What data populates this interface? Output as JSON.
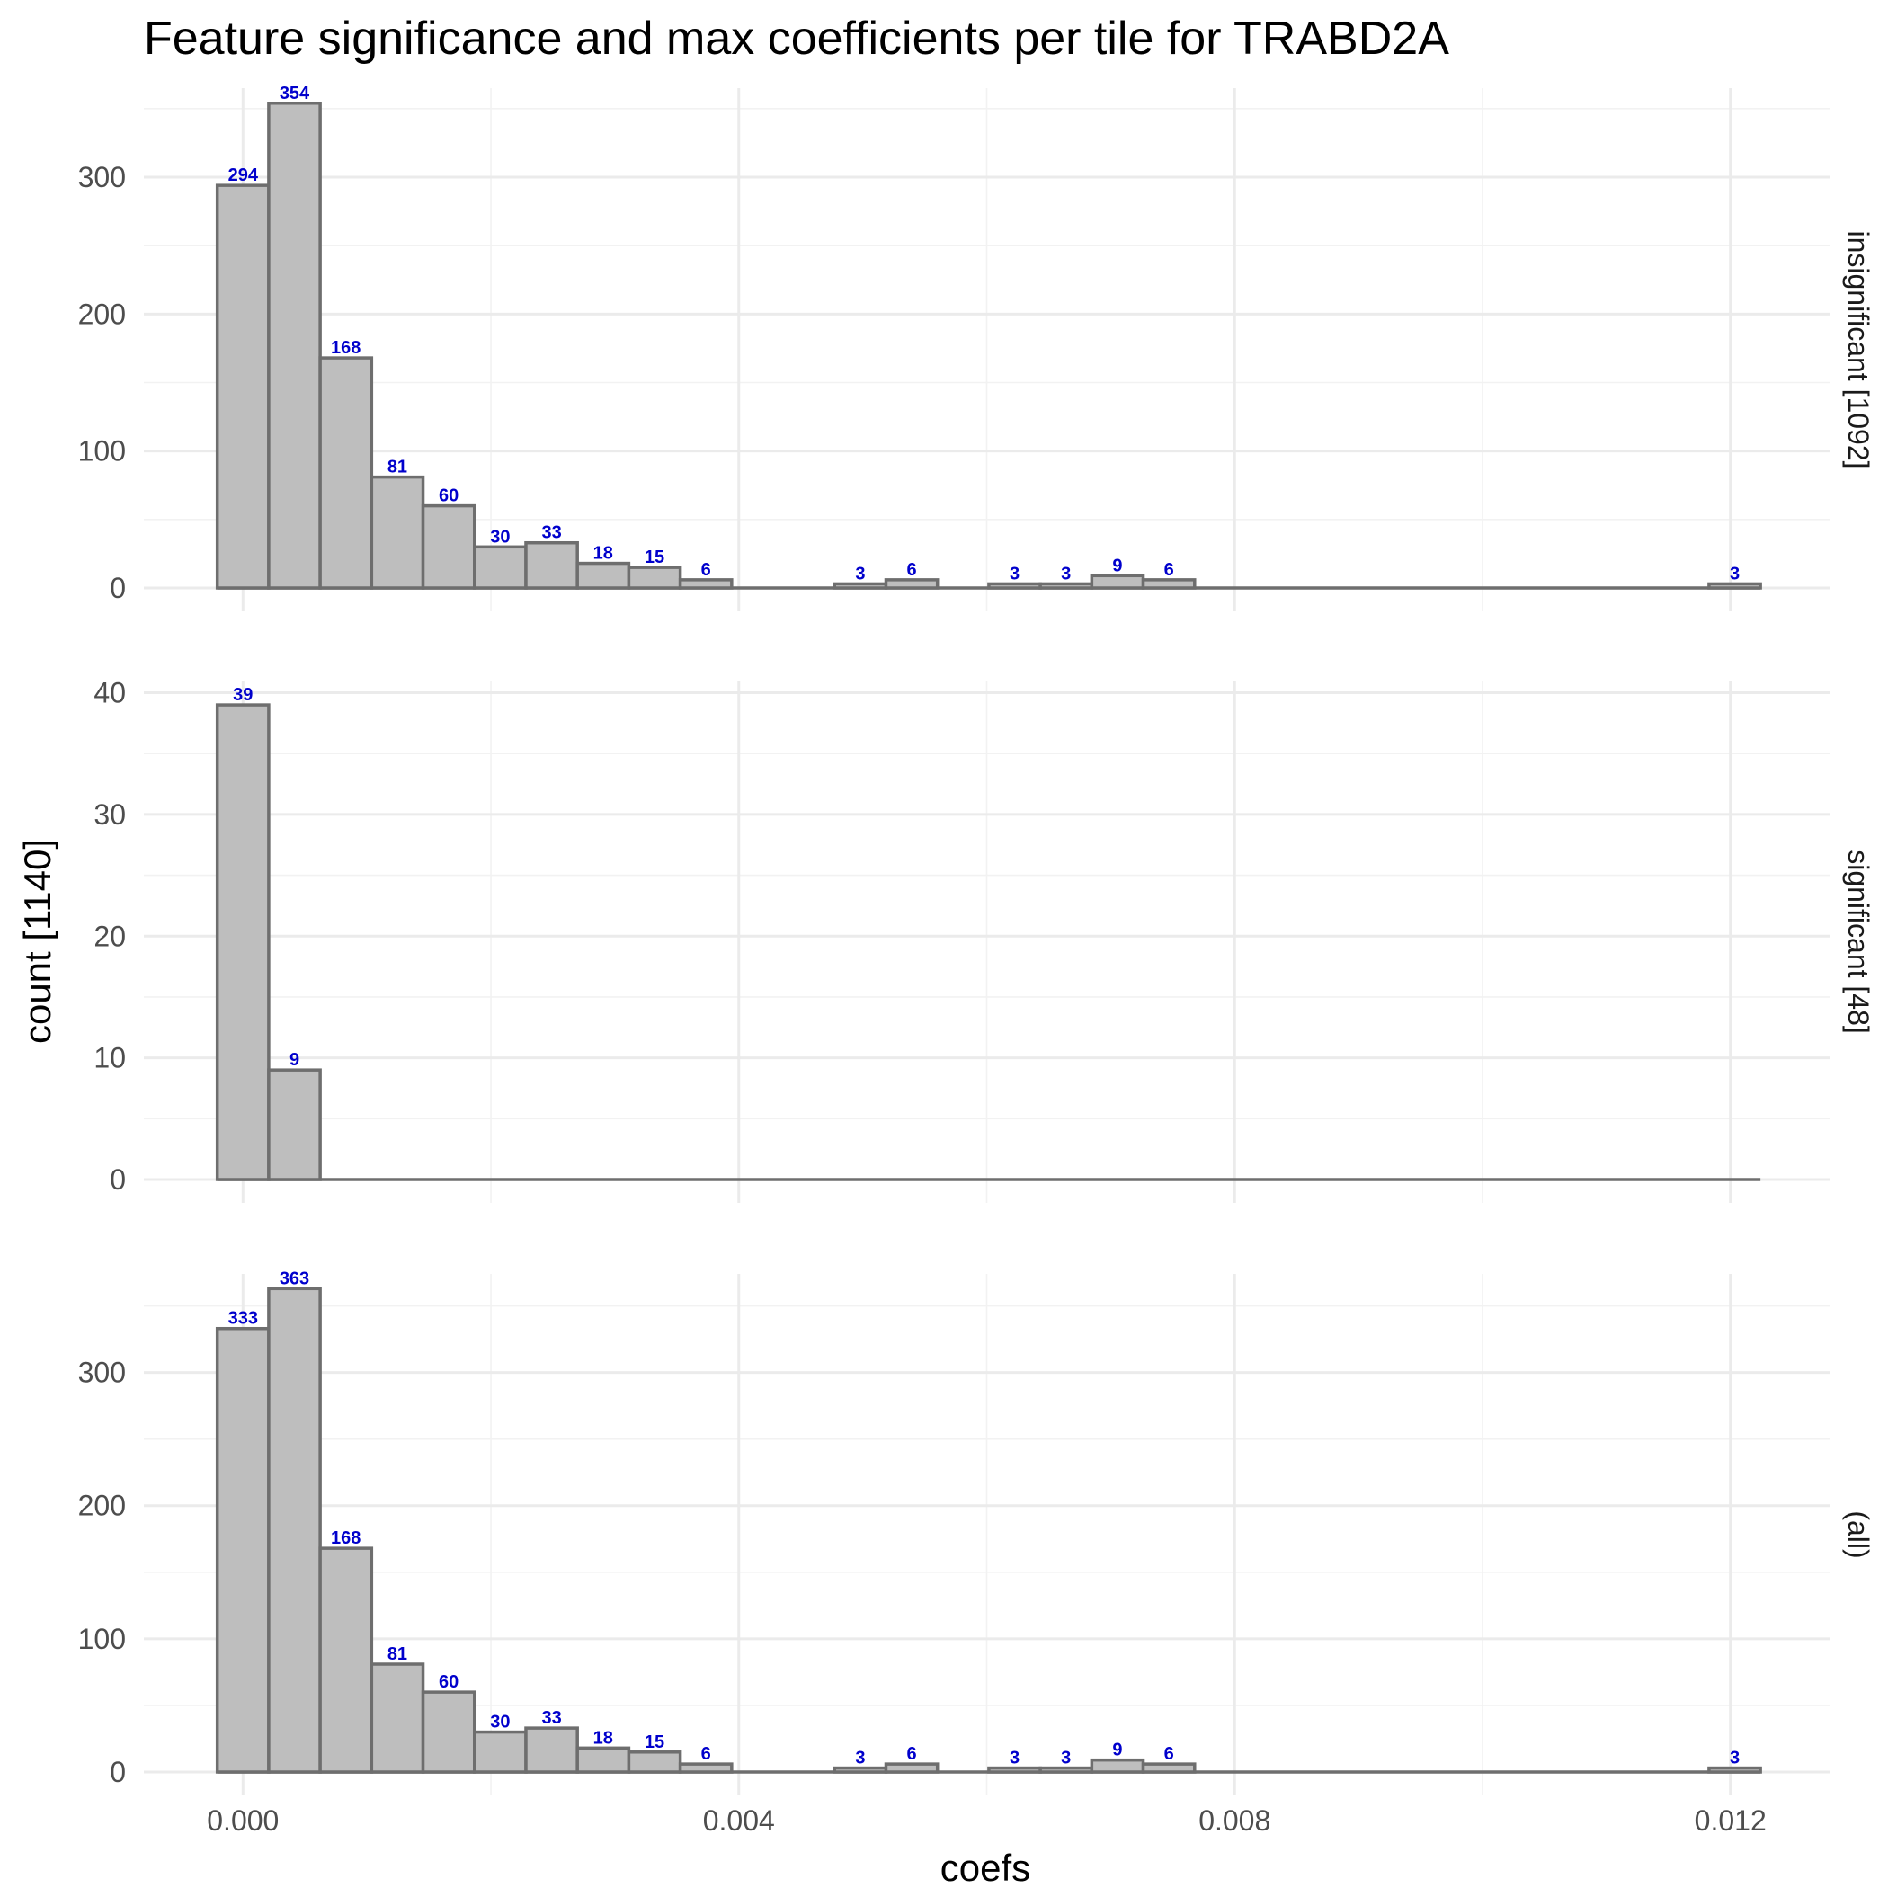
{
  "chart_data": {
    "type": "bar",
    "subtype": "histogram-facets",
    "title": "Feature significance and max coefficients per tile for TRABD2A",
    "xlabel": "coefs",
    "ylabel": "count [1140]",
    "xlim": [
      -0.0008,
      0.0128
    ],
    "x_ticks": [
      0.0,
      0.004,
      0.008,
      0.012
    ],
    "x_tick_labels": [
      "0.000",
      "0.004",
      "0.008",
      "0.012"
    ],
    "grid": true,
    "bin_width": 0.000415,
    "bin_centers": [
      0.0,
      0.000415,
      0.00083,
      0.001245,
      0.00166,
      0.002075,
      0.00249,
      0.002905,
      0.00332,
      0.003735,
      0.00415,
      0.004565,
      0.00498,
      0.005395,
      0.00581,
      0.006225,
      0.00664,
      0.007055,
      0.00747,
      0.007885,
      0.0083,
      0.008715,
      0.00913,
      0.009545,
      0.00996,
      0.010375,
      0.01079,
      0.011205,
      0.01162,
      0.012035
    ],
    "panels": [
      {
        "strip": "insignificant [1092]",
        "ylim": [
          0,
          365
        ],
        "y_ticks": [
          0,
          100,
          200,
          300
        ],
        "y_tick_labels": [
          "0",
          "100",
          "200",
          "300"
        ],
        "counts": [
          294,
          354,
          168,
          81,
          60,
          30,
          33,
          18,
          15,
          6,
          0,
          0,
          3,
          6,
          0,
          3,
          3,
          9,
          6,
          0,
          0,
          0,
          0,
          0,
          0,
          0,
          0,
          0,
          0,
          3
        ]
      },
      {
        "strip": "significant [48]",
        "ylim": [
          0,
          41
        ],
        "y_ticks": [
          0,
          10,
          20,
          30,
          40
        ],
        "y_tick_labels": [
          "0",
          "10",
          "20",
          "30",
          "40"
        ],
        "counts": [
          39,
          9,
          0,
          0,
          0,
          0,
          0,
          0,
          0,
          0,
          0,
          0,
          0,
          0,
          0,
          0,
          0,
          0,
          0,
          0,
          0,
          0,
          0,
          0,
          0,
          0,
          0,
          0,
          0,
          0
        ]
      },
      {
        "strip": "(all)",
        "ylim": [
          0,
          374
        ],
        "y_ticks": [
          0,
          100,
          200,
          300
        ],
        "y_tick_labels": [
          "0",
          "100",
          "200",
          "300"
        ],
        "counts": [
          333,
          363,
          168,
          81,
          60,
          30,
          33,
          18,
          15,
          6,
          0,
          0,
          3,
          6,
          0,
          3,
          3,
          9,
          6,
          0,
          0,
          0,
          0,
          0,
          0,
          0,
          0,
          0,
          0,
          3
        ]
      }
    ],
    "bar_fill": "#bebebe",
    "bar_outline": "#6e6e6e",
    "label_color": "#0000cc"
  }
}
